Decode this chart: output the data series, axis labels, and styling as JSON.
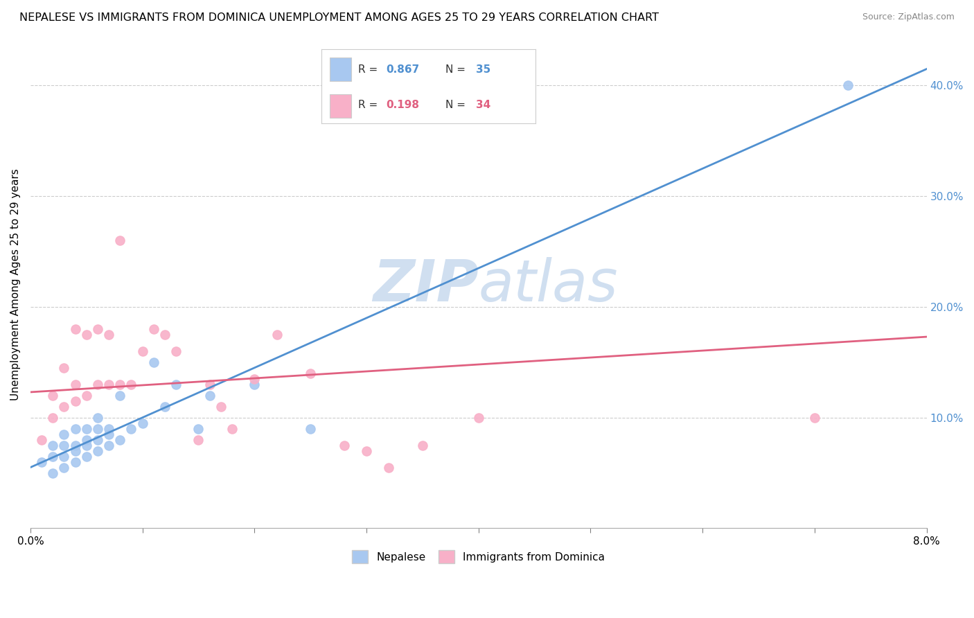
{
  "title": "NEPALESE VS IMMIGRANTS FROM DOMINICA UNEMPLOYMENT AMONG AGES 25 TO 29 YEARS CORRELATION CHART",
  "source": "Source: ZipAtlas.com",
  "ylabel": "Unemployment Among Ages 25 to 29 years",
  "xlim": [
    0.0,
    0.08
  ],
  "ylim": [
    0.0,
    0.44
  ],
  "nepalese_R": 0.867,
  "nepalese_N": 35,
  "dominica_R": 0.198,
  "dominica_N": 34,
  "nepalese_color": "#a8c8f0",
  "dominica_color": "#f8b0c8",
  "nepalese_line_color": "#5090d0",
  "dominica_line_color": "#e06080",
  "watermark_color": "#d0dff0",
  "nepalese_x": [
    0.001,
    0.002,
    0.002,
    0.002,
    0.003,
    0.003,
    0.003,
    0.003,
    0.004,
    0.004,
    0.004,
    0.004,
    0.005,
    0.005,
    0.005,
    0.005,
    0.006,
    0.006,
    0.006,
    0.006,
    0.007,
    0.007,
    0.007,
    0.008,
    0.008,
    0.009,
    0.01,
    0.011,
    0.012,
    0.013,
    0.015,
    0.016,
    0.02,
    0.025,
    0.073
  ],
  "nepalese_y": [
    0.06,
    0.05,
    0.065,
    0.075,
    0.055,
    0.065,
    0.075,
    0.085,
    0.06,
    0.07,
    0.075,
    0.09,
    0.065,
    0.075,
    0.08,
    0.09,
    0.07,
    0.08,
    0.09,
    0.1,
    0.075,
    0.085,
    0.09,
    0.08,
    0.12,
    0.09,
    0.095,
    0.15,
    0.11,
    0.13,
    0.09,
    0.12,
    0.13,
    0.09,
    0.4
  ],
  "dominica_x": [
    0.001,
    0.002,
    0.002,
    0.003,
    0.003,
    0.004,
    0.004,
    0.004,
    0.005,
    0.005,
    0.006,
    0.006,
    0.007,
    0.007,
    0.008,
    0.008,
    0.009,
    0.01,
    0.011,
    0.012,
    0.013,
    0.015,
    0.016,
    0.017,
    0.018,
    0.02,
    0.022,
    0.025,
    0.028,
    0.03,
    0.032,
    0.035,
    0.04,
    0.07
  ],
  "dominica_y": [
    0.08,
    0.1,
    0.12,
    0.11,
    0.145,
    0.115,
    0.13,
    0.18,
    0.12,
    0.175,
    0.13,
    0.18,
    0.13,
    0.175,
    0.13,
    0.26,
    0.13,
    0.16,
    0.18,
    0.175,
    0.16,
    0.08,
    0.13,
    0.11,
    0.09,
    0.135,
    0.175,
    0.14,
    0.075,
    0.07,
    0.055,
    0.075,
    0.1,
    0.1
  ],
  "blue_line_x0": 0.0,
  "blue_line_y0": 0.055,
  "blue_line_x1": 0.08,
  "blue_line_y1": 0.415,
  "pink_line_x0": 0.0,
  "pink_line_y0": 0.123,
  "pink_line_x1": 0.08,
  "pink_line_y1": 0.173
}
